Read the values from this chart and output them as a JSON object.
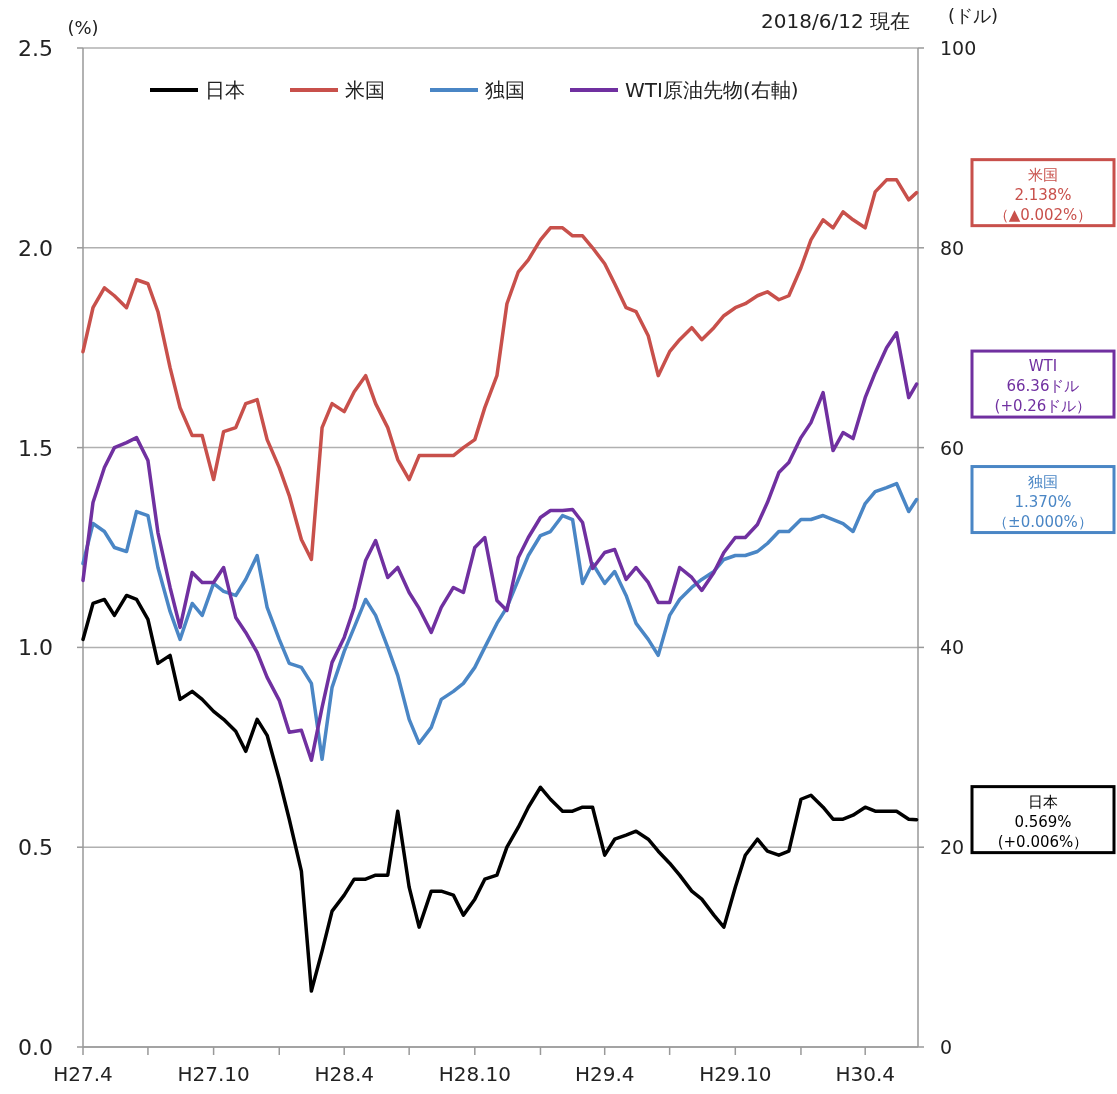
{
  "chart_data": {
    "type": "line",
    "ylabel": "(%)",
    "y2label": "(ドル)",
    "x": [
      "2015-04-01",
      "2015-04-15",
      "2015-05-01",
      "2015-05-15",
      "2015-06-01",
      "2015-06-15",
      "2015-07-01",
      "2015-07-15",
      "2015-08-01",
      "2015-08-15",
      "2015-09-01",
      "2015-09-15",
      "2015-10-01",
      "2015-10-15",
      "2015-11-01",
      "2015-11-15",
      "2015-12-01",
      "2015-12-15",
      "2016-01-01",
      "2016-01-15",
      "2016-02-01",
      "2016-02-15",
      "2016-03-01",
      "2016-03-15",
      "2016-04-01",
      "2016-04-15",
      "2016-05-01",
      "2016-05-15",
      "2016-06-01",
      "2016-06-15",
      "2016-07-01",
      "2016-07-15",
      "2016-08-01",
      "2016-08-15",
      "2016-09-01",
      "2016-09-15",
      "2016-10-01",
      "2016-10-15",
      "2016-11-01",
      "2016-11-15",
      "2016-12-01",
      "2016-12-15",
      "2017-01-01",
      "2017-01-15",
      "2017-02-01",
      "2017-02-15",
      "2017-03-01",
      "2017-03-15",
      "2017-04-01",
      "2017-04-15",
      "2017-05-01",
      "2017-05-15",
      "2017-06-01",
      "2017-06-15",
      "2017-07-01",
      "2017-07-15",
      "2017-08-01",
      "2017-08-15",
      "2017-09-01",
      "2017-09-15",
      "2017-10-01",
      "2017-10-15",
      "2017-11-01",
      "2017-11-15",
      "2017-12-01",
      "2017-12-15",
      "2018-01-01",
      "2018-01-15",
      "2018-02-01",
      "2018-02-15",
      "2018-03-01",
      "2018-03-15",
      "2018-04-01",
      "2018-04-15",
      "2018-05-01",
      "2018-05-15",
      "2018-06-01",
      "2018-06-12"
    ],
    "series": [
      {
        "name": "日本",
        "color": "#000000",
        "values": [
          1.02,
          1.11,
          1.12,
          1.08,
          1.13,
          1.12,
          1.07,
          0.96,
          0.98,
          0.87,
          0.89,
          0.87,
          0.84,
          0.82,
          0.79,
          0.74,
          0.82,
          0.78,
          0.67,
          0.57,
          0.44,
          0.14,
          0.24,
          0.34,
          0.38,
          0.42,
          0.42,
          0.43,
          0.43,
          0.59,
          0.4,
          0.3,
          0.39,
          0.39,
          0.38,
          0.33,
          0.37,
          0.42,
          0.43,
          0.5,
          0.55,
          0.6,
          0.65,
          0.62,
          0.59,
          0.59,
          0.6,
          0.6,
          0.48,
          0.52,
          0.53,
          0.54,
          0.52,
          0.49,
          0.46,
          0.43,
          0.39,
          0.37,
          0.33,
          0.3,
          0.4,
          0.48,
          0.52,
          0.49,
          0.48,
          0.49,
          0.62,
          0.63,
          0.6,
          0.57,
          0.57,
          0.58,
          0.6,
          0.59,
          0.59,
          0.59,
          0.57,
          0.569
        ]
      },
      {
        "name": "米国",
        "color": "#c8504b",
        "values": [
          1.74,
          1.85,
          1.9,
          1.88,
          1.85,
          1.92,
          1.91,
          1.84,
          1.7,
          1.6,
          1.53,
          1.53,
          1.42,
          1.54,
          1.55,
          1.61,
          1.62,
          1.52,
          1.45,
          1.38,
          1.27,
          1.22,
          1.55,
          1.61,
          1.59,
          1.64,
          1.68,
          1.61,
          1.55,
          1.47,
          1.42,
          1.48,
          1.48,
          1.48,
          1.48,
          1.5,
          1.52,
          1.6,
          1.68,
          1.86,
          1.94,
          1.97,
          2.02,
          2.05,
          2.05,
          2.03,
          2.03,
          2.0,
          1.96,
          1.91,
          1.85,
          1.84,
          1.78,
          1.68,
          1.74,
          1.77,
          1.8,
          1.77,
          1.8,
          1.83,
          1.85,
          1.86,
          1.88,
          1.89,
          1.87,
          1.88,
          1.95,
          2.02,
          2.07,
          2.05,
          2.09,
          2.07,
          2.05,
          2.14,
          2.17,
          2.17,
          2.12,
          2.138
        ]
      },
      {
        "name": "独国",
        "color": "#4a86c5",
        "values": [
          1.21,
          1.31,
          1.29,
          1.25,
          1.24,
          1.34,
          1.33,
          1.2,
          1.09,
          1.02,
          1.11,
          1.08,
          1.16,
          1.14,
          1.13,
          1.17,
          1.23,
          1.1,
          1.02,
          0.96,
          0.95,
          0.91,
          0.72,
          0.9,
          0.99,
          1.05,
          1.12,
          1.08,
          1.0,
          0.93,
          0.82,
          0.76,
          0.8,
          0.87,
          0.89,
          0.91,
          0.95,
          1.0,
          1.06,
          1.1,
          1.17,
          1.23,
          1.28,
          1.29,
          1.33,
          1.32,
          1.16,
          1.21,
          1.16,
          1.19,
          1.13,
          1.06,
          1.02,
          0.98,
          1.08,
          1.12,
          1.15,
          1.17,
          1.19,
          1.22,
          1.23,
          1.23,
          1.24,
          1.26,
          1.29,
          1.29,
          1.32,
          1.32,
          1.33,
          1.32,
          1.31,
          1.29,
          1.36,
          1.39,
          1.4,
          1.41,
          1.34,
          1.37
        ]
      },
      {
        "name": "WTI原油先物(右軸)",
        "color": "#7030a0",
        "axis": "y2",
        "values": [
          46.7,
          54.5,
          58,
          60,
          60.5,
          61,
          58.7,
          51.5,
          46,
          42,
          47.5,
          46.5,
          46.5,
          48,
          43,
          41.5,
          39.5,
          37,
          34.7,
          31.5,
          31.7,
          28.7,
          34,
          38.5,
          41,
          44,
          48.7,
          50.7,
          47,
          48,
          45.5,
          43.9,
          41.5,
          44,
          46,
          45.5,
          50,
          51,
          44.7,
          43.7,
          49,
          51,
          53,
          53.7,
          53.7,
          53.8,
          52.5,
          47.9,
          49.5,
          49.8,
          46.8,
          48,
          46.5,
          44.5,
          44.5,
          48,
          47,
          45.7,
          47.5,
          49.5,
          51,
          51,
          52.3,
          54.5,
          57.5,
          58.5,
          61,
          62.5,
          65.5,
          59.7,
          61.5,
          60.9,
          65,
          67.5,
          70,
          71.5,
          65,
          66.36
        ]
      }
    ],
    "xlim": [
      "2015-04-01",
      "2018-06-14"
    ],
    "xticks": [
      {
        "value": "2015-04-01",
        "label": "H27.4"
      },
      {
        "value": "2015-07-01",
        "label": null
      },
      {
        "value": "2015-10-01",
        "label": "H27.10"
      },
      {
        "value": "2016-01-01",
        "label": null
      },
      {
        "value": "2016-04-01",
        "label": "H28.4"
      },
      {
        "value": "2016-07-01",
        "label": null
      },
      {
        "value": "2016-10-01",
        "label": "H28.10"
      },
      {
        "value": "2017-01-01",
        "label": null
      },
      {
        "value": "2017-04-01",
        "label": "H29.4"
      },
      {
        "value": "2017-07-01",
        "label": null
      },
      {
        "value": "2017-10-01",
        "label": "H29.10"
      },
      {
        "value": "2018-01-01",
        "label": null
      },
      {
        "value": "2018-04-01",
        "label": "H30.4"
      }
    ],
    "ylim": [
      0,
      2.5
    ],
    "yticks": [
      {
        "value": 0,
        "label": "0.0"
      },
      0.5,
      {
        "value": 1,
        "label": "1.0"
      },
      1.5,
      {
        "value": 2,
        "label": "2.0"
      },
      2.5
    ],
    "y2lim": [
      0,
      100
    ],
    "y2ticks": [
      0,
      20,
      40,
      60,
      80,
      100
    ],
    "grid": "y",
    "legend": "top",
    "annotations": [
      "2018/6/12 現在",
      "米国\n2.138%\n（▲0.002%）",
      "WTI\n66.36ドル\n(+0.26ドル）",
      "独国\n1.370%\n（±0.000%）",
      "日本\n0.569%\n(+0.006%）"
    ]
  }
}
